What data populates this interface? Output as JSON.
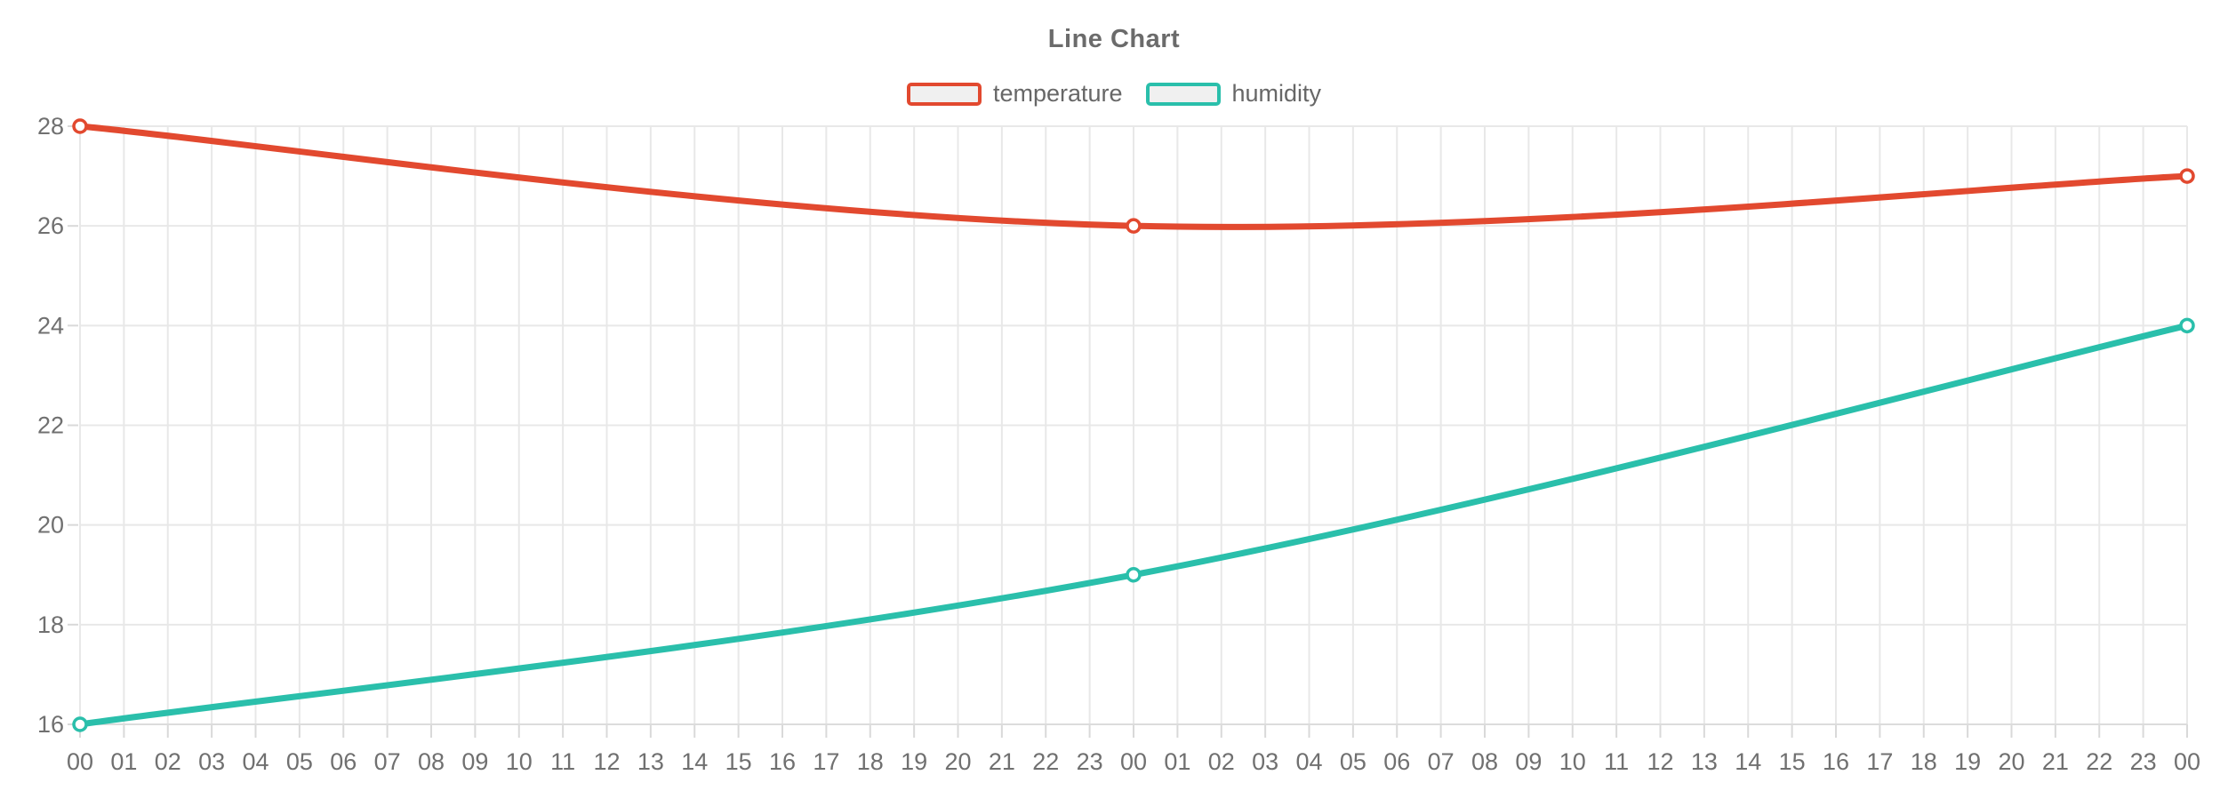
{
  "title": "Line Chart",
  "legend": {
    "position": "top",
    "items": [
      {
        "label": "temperature",
        "color": "#e2492f"
      },
      {
        "label": "humidity",
        "color": "#2abfab"
      }
    ]
  },
  "chart_data": {
    "type": "line",
    "title": "Line Chart",
    "smooth": true,
    "grid": true,
    "legend_position": "top",
    "categories": [
      "00",
      "01",
      "02",
      "03",
      "04",
      "05",
      "06",
      "07",
      "08",
      "09",
      "10",
      "11",
      "12",
      "13",
      "14",
      "15",
      "16",
      "17",
      "18",
      "19",
      "20",
      "21",
      "22",
      "23",
      "00",
      "01",
      "02",
      "03",
      "04",
      "05",
      "06",
      "07",
      "08",
      "09",
      "10",
      "11",
      "12",
      "13",
      "14",
      "15",
      "16",
      "17",
      "18",
      "19",
      "20",
      "21",
      "22",
      "23",
      "00"
    ],
    "series": [
      {
        "name": "temperature",
        "color": "#e2492f",
        "marker": "hollow-circle",
        "points": [
          {
            "x_index": 0,
            "x_label": "00",
            "value": 28
          },
          {
            "x_index": 24,
            "x_label": "00",
            "value": 26
          },
          {
            "x_index": 48,
            "x_label": "00",
            "value": 27
          }
        ]
      },
      {
        "name": "humidity",
        "color": "#2abfab",
        "marker": "hollow-circle",
        "points": [
          {
            "x_index": 0,
            "x_label": "00",
            "value": 16
          },
          {
            "x_index": 24,
            "x_label": "00",
            "value": 19
          },
          {
            "x_index": 48,
            "x_label": "00",
            "value": 24
          }
        ]
      }
    ],
    "y_axis": {
      "min": 16,
      "max": 28,
      "tick_step": 2,
      "ticks": [
        16,
        18,
        20,
        22,
        24,
        26,
        28
      ]
    }
  },
  "style": {
    "background": "#ffffff",
    "grid_color": "#e8e8e8",
    "axis_line_color": "#dcdcdc",
    "tick_color": "#d9d9d9",
    "axis_label_color": "#707070",
    "title_color": "#6b6b6b",
    "legend_label_color": "#676767",
    "swatch_fill": "#f0f0f0",
    "marker_fill": "#ffffff"
  }
}
